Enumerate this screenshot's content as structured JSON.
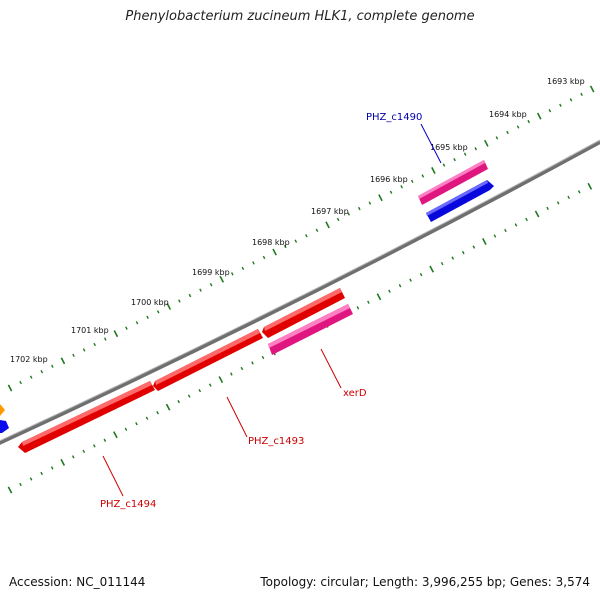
{
  "title": "Phenylobacterium zucineum HLK1, complete genome",
  "footer": {
    "accession": "Accession: NC_011144",
    "summary": "Topology: circular; Length: 3,996,255 bp; Genes: 3,574"
  },
  "colors": {
    "backbone": "#7a7a7a",
    "tick": "#1e7a1e",
    "gene_red": "#ee0000",
    "gene_pink": "#ee2299",
    "gene_blue": "#0a0aee",
    "gene_orange": "#ff9900",
    "label_red": "#cc0000",
    "label_blue": "#0000aa"
  },
  "scale_labels": [
    "1693 kbp",
    "1694 kbp",
    "1695 kbp",
    "1696 kbp",
    "1697 kbp",
    "1698 kbp",
    "1699 kbp",
    "1700 kbp",
    "1701 kbp",
    "1702 kbp"
  ],
  "gene_labels": {
    "c1490": "PHZ_c1490",
    "xerD": "xerD",
    "c1493": "PHZ_c1493",
    "c1494": "PHZ_c1494"
  }
}
